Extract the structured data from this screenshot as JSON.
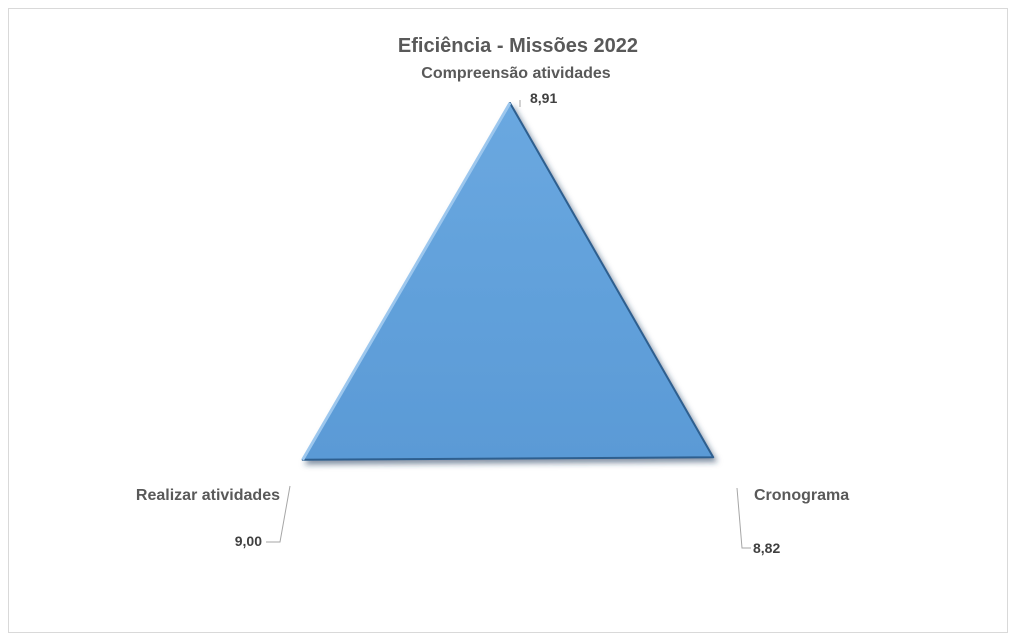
{
  "chart_data": {
    "type": "radar",
    "title": "Eficiência - Missões 2022",
    "categories": [
      "Compreensão atividades",
      "Cronograma",
      "Realizar atividades"
    ],
    "series": [
      {
        "values": [
          8.91,
          8.82,
          9.0
        ]
      }
    ],
    "value_labels": [
      "8,91",
      "8,82",
      "9,00"
    ],
    "fill_color": "#5b9bd5",
    "grid": false,
    "legend": "none"
  }
}
